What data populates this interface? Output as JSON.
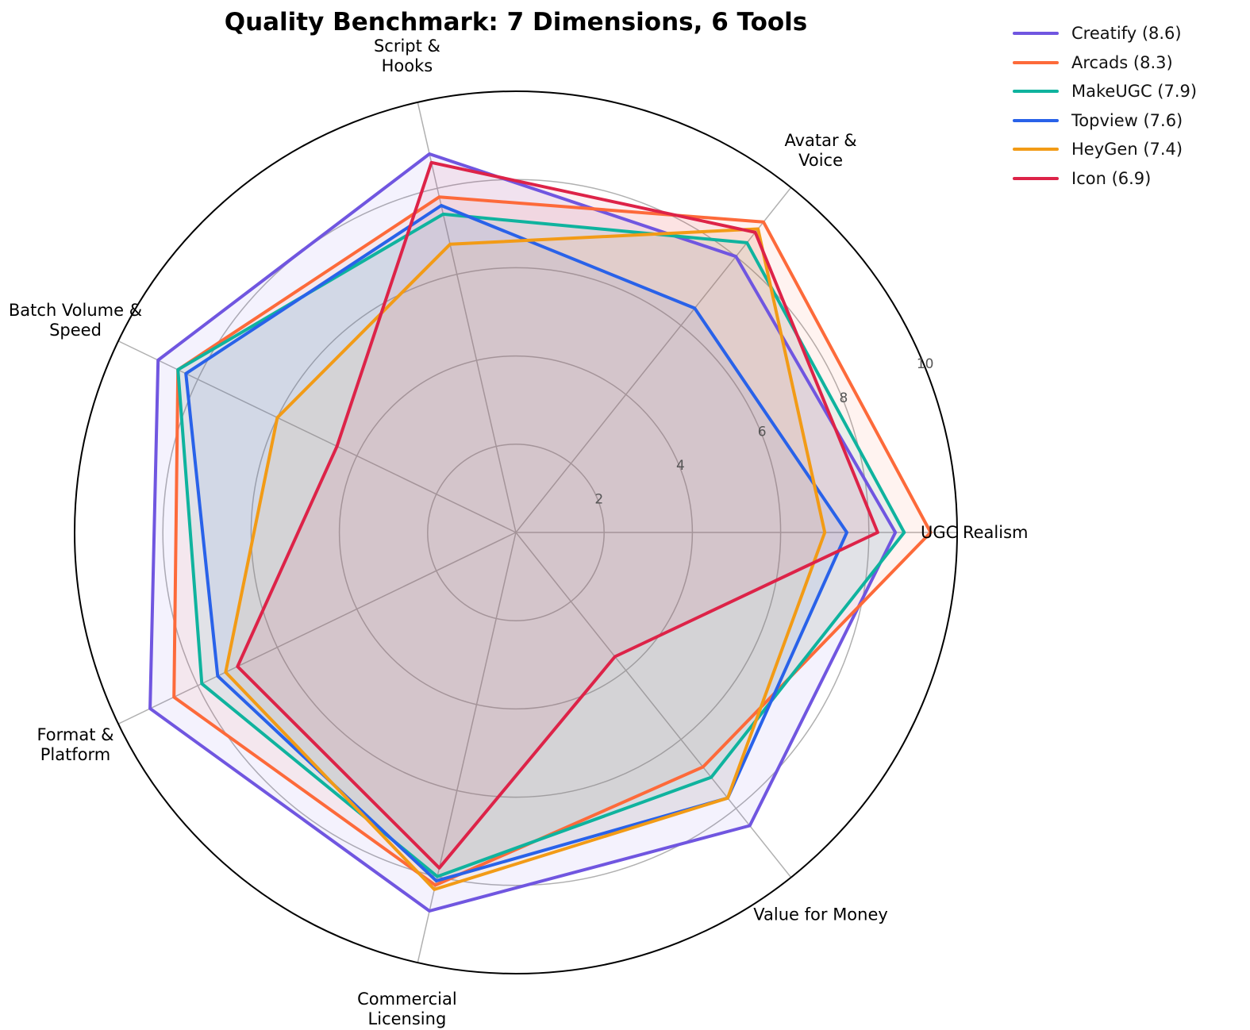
{
  "chart_data": {
    "type": "radar",
    "title": "Quality Benchmark: 7 Dimensions, 6 Tools",
    "categories": [
      [
        "UGC Realism"
      ],
      [
        "Avatar &",
        "Voice"
      ],
      [
        "Script &",
        "Hooks"
      ],
      [
        "Batch Volume &",
        "Speed"
      ],
      [
        "Format &",
        "Platform"
      ],
      [
        "Commercial",
        "Licensing"
      ],
      [
        "Value for Money"
      ]
    ],
    "rlim": [
      0,
      10
    ],
    "rticks": [
      "2",
      "4",
      "6",
      "8",
      "10"
    ],
    "rtick_values": [
      2,
      4,
      6,
      8,
      10
    ],
    "legend_position": "top-right",
    "series": [
      {
        "name": "Creatify (8.6)",
        "color": "#7056e0",
        "values": [
          8.6,
          8.0,
          8.8,
          9.0,
          9.2,
          8.8,
          8.5
        ]
      },
      {
        "name": "Arcads (8.3)",
        "color": "#fd6a3a",
        "values": [
          9.4,
          9.0,
          7.8,
          8.5,
          8.6,
          8.2,
          6.8
        ]
      },
      {
        "name": "MakeUGC (7.9)",
        "color": "#0fb39e",
        "values": [
          8.8,
          8.4,
          7.4,
          8.5,
          7.9,
          8.0,
          7.1
        ]
      },
      {
        "name": "Topview (7.6)",
        "color": "#2962e9",
        "values": [
          7.5,
          6.5,
          7.6,
          8.3,
          7.5,
          8.1,
          7.7
        ]
      },
      {
        "name": "HeyGen (7.4)",
        "color": "#f29b16",
        "values": [
          7.0,
          8.8,
          6.7,
          6.0,
          7.3,
          8.3,
          7.7
        ]
      },
      {
        "name": "Icon (6.9)",
        "color": "#dd2348",
        "values": [
          8.2,
          8.7,
          8.6,
          4.5,
          7.0,
          7.8,
          3.6
        ]
      }
    ]
  }
}
